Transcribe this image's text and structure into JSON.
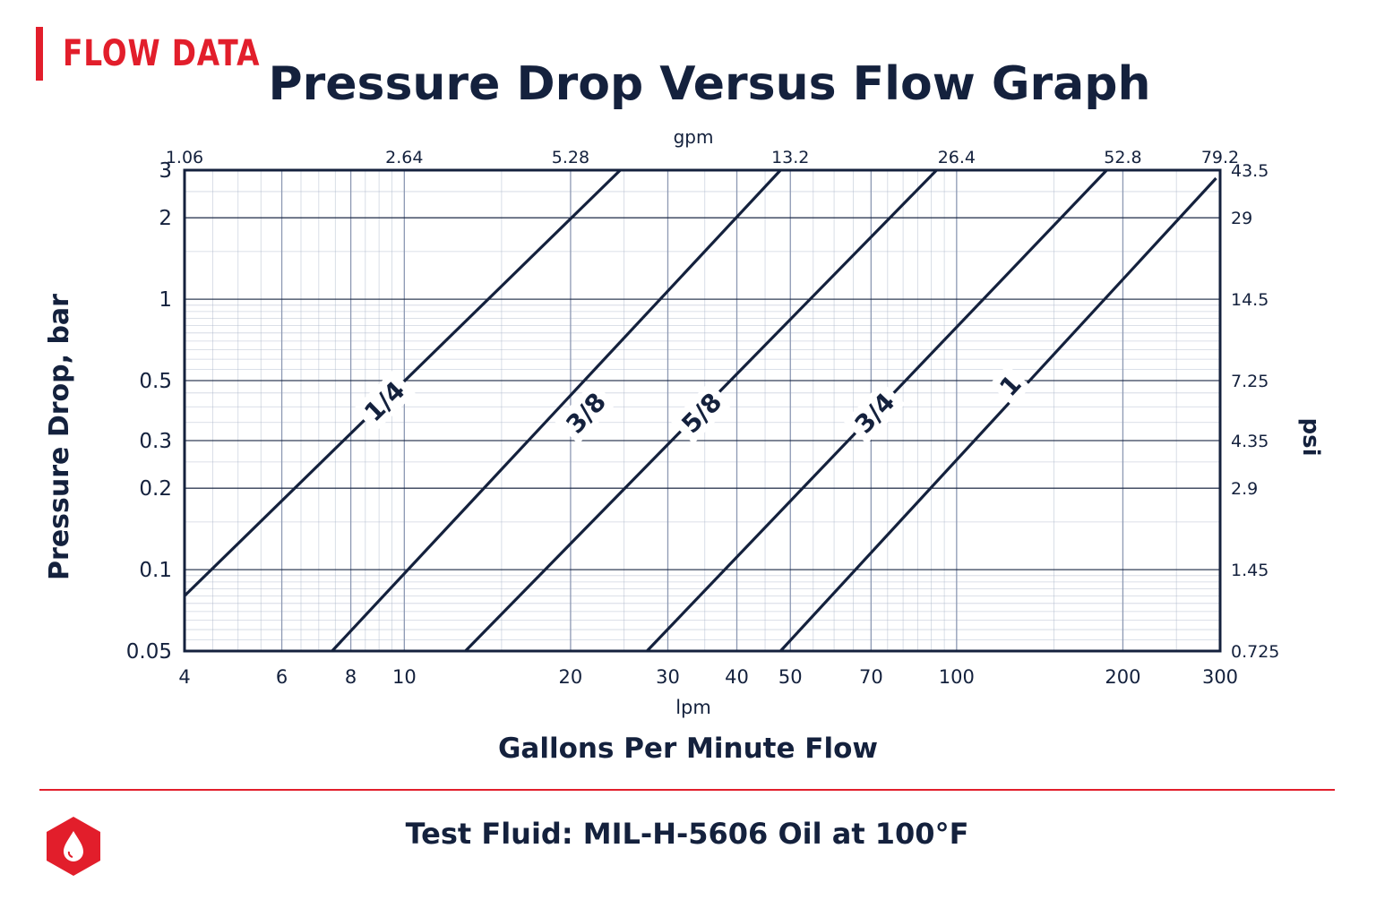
{
  "header": {
    "section_label": "FLOW DATA",
    "title": "Pressure Drop Versus Flow Graph"
  },
  "colors": {
    "accent": "#e21e2b",
    "ink": "#14213d",
    "grid": "#a9b4c8"
  },
  "chart_data": {
    "type": "line",
    "title": "Pressure Drop Versus Flow Graph",
    "x_scale": "log",
    "y_scale": "log",
    "xlim": [
      4,
      300
    ],
    "ylim": [
      0.05,
      3
    ],
    "grid": true,
    "x_unit": "lpm",
    "x_title": "Gallons Per Minute Flow",
    "x_ticks": [
      4,
      6,
      8,
      10,
      20,
      30,
      40,
      50,
      70,
      100,
      200,
      300
    ],
    "x_top_unit": "gpm",
    "x_top_ticks": [
      {
        "lpm": 4,
        "label": "1.06"
      },
      {
        "lpm": 10,
        "label": "2.64"
      },
      {
        "lpm": 20,
        "label": "5.28"
      },
      {
        "lpm": 50,
        "label": "13.2"
      },
      {
        "lpm": 100,
        "label": "26.4"
      },
      {
        "lpm": 200,
        "label": "52.8"
      },
      {
        "lpm": 300,
        "label": "79.2"
      }
    ],
    "ylabel": "Pressure Drop, bar",
    "y_ticks": [
      0.05,
      0.1,
      0.2,
      0.3,
      0.5,
      1,
      2,
      3
    ],
    "y_right_unit": "psi",
    "y_right_ticks": [
      {
        "bar": 0.05,
        "label": "0.725"
      },
      {
        "bar": 0.1,
        "label": "1.45"
      },
      {
        "bar": 0.2,
        "label": "2.9"
      },
      {
        "bar": 0.3,
        "label": "4.35"
      },
      {
        "bar": 0.5,
        "label": "7.25"
      },
      {
        "bar": 1,
        "label": "14.5"
      },
      {
        "bar": 2,
        "label": "29"
      },
      {
        "bar": 3,
        "label": "43.5"
      }
    ],
    "series": [
      {
        "name": "1/4",
        "x": [
          4,
          24.6
        ],
        "y": [
          0.08,
          3
        ],
        "label_at": {
          "x": 9.2,
          "y": 0.42
        }
      },
      {
        "name": "3/8",
        "x": [
          7.4,
          48
        ],
        "y": [
          0.05,
          3
        ],
        "label_at": {
          "x": 21.3,
          "y": 0.38
        }
      },
      {
        "name": "5/8",
        "x": [
          12.9,
          92
        ],
        "y": [
          0.05,
          3
        ],
        "label_at": {
          "x": 34.5,
          "y": 0.38
        }
      },
      {
        "name": "3/4",
        "x": [
          27.5,
          187
        ],
        "y": [
          0.05,
          3
        ],
        "label_at": {
          "x": 71,
          "y": 0.38
        }
      },
      {
        "name": "1",
        "x": [
          48,
          295
        ],
        "y": [
          0.05,
          2.8
        ],
        "label_at": {
          "x": 125,
          "y": 0.48
        }
      }
    ]
  },
  "footer": {
    "note": "Test Fluid: MIL-H-5606 Oil at 100°F",
    "icon": "oil-drop-hexagon-icon"
  }
}
